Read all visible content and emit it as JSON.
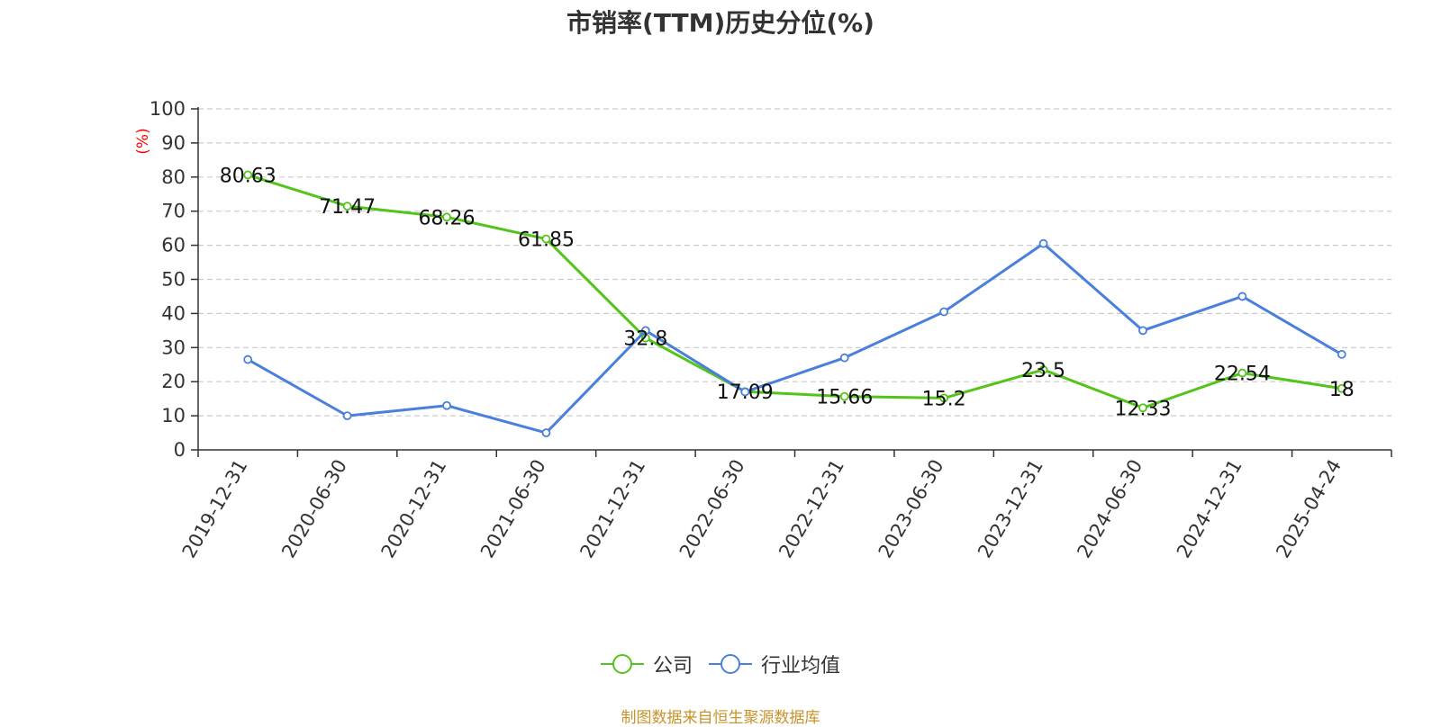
{
  "title": "市销率(TTM)历史分位(%)",
  "source": "制图数据来自恒生聚源数据库",
  "colors": {
    "company": "#52c41a",
    "industry": "#4a7fdc",
    "source": "#c8932a",
    "ylabel": "#ff0000"
  },
  "chart_data": {
    "type": "line",
    "categories": [
      "2019-12-31",
      "2020-06-30",
      "2020-12-31",
      "2021-06-30",
      "2021-12-31",
      "2022-06-30",
      "2022-12-31",
      "2023-06-30",
      "2023-12-31",
      "2024-06-30",
      "2024-12-31",
      "2025-04-24"
    ],
    "ylabel": "(%)",
    "ylim": [
      0,
      100
    ],
    "yticks": [
      "0",
      "10",
      "20",
      "30",
      "40",
      "50",
      "60",
      "70",
      "80",
      "90",
      "100"
    ],
    "grid": true,
    "legend_position": "bottom",
    "series": [
      {
        "name": "公司",
        "values": [
          80.63,
          71.47,
          68.26,
          61.85,
          32.8,
          17.09,
          15.66,
          15.2,
          23.5,
          12.33,
          22.54,
          18
        ],
        "labels": [
          "80.63",
          "71.47",
          "68.26",
          "61.85",
          "32.8",
          "17.09",
          "15.66",
          "15.2",
          "23.5",
          "12.33",
          "22.54",
          "18"
        ]
      },
      {
        "name": "行业均值",
        "values": [
          26.5,
          10,
          13,
          5,
          35,
          17,
          27,
          40.5,
          60.5,
          35,
          45,
          28
        ]
      }
    ]
  }
}
